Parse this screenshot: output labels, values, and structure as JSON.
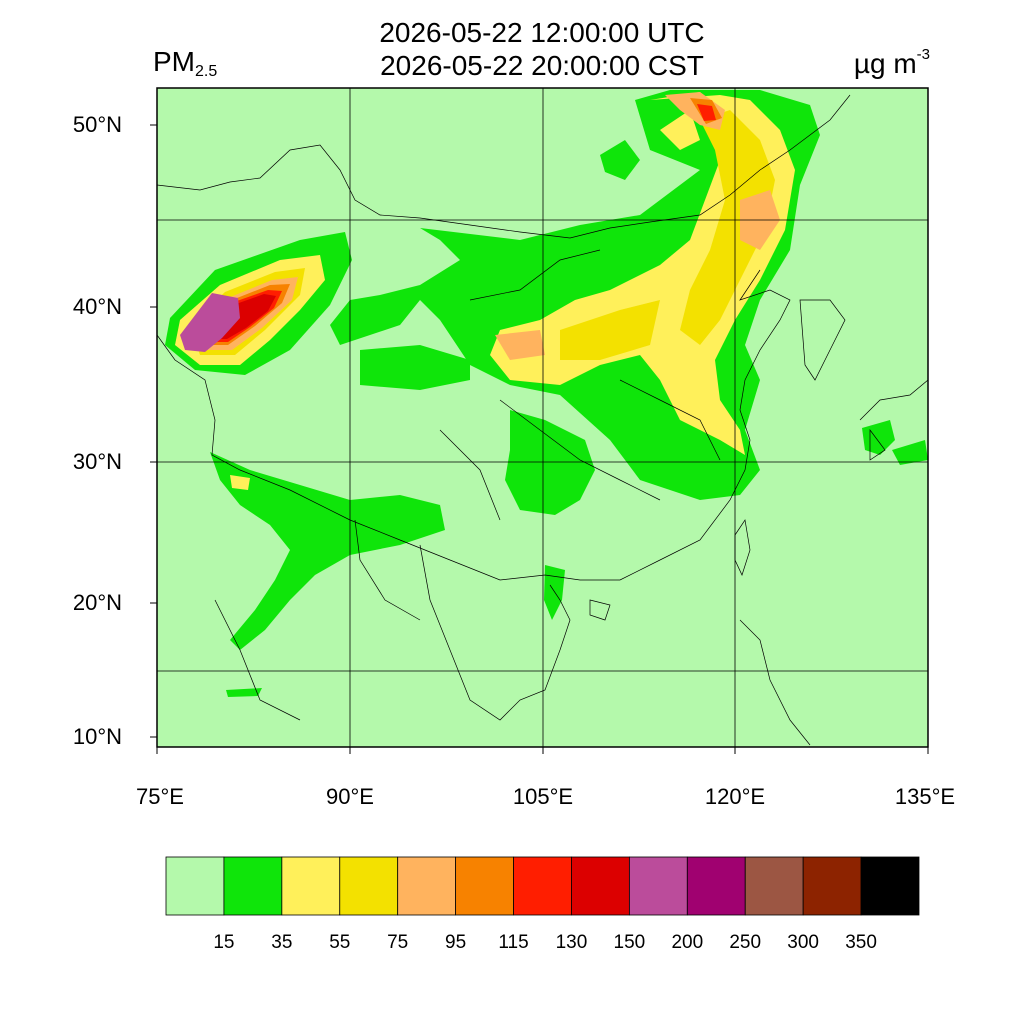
{
  "header": {
    "time_utc": "2026-05-22 12:00:00 UTC",
    "time_cst": "2026-05-22 20:00:00 CST",
    "variable": "PM",
    "variable_sub": "2.5",
    "unit_base": "µg m",
    "unit_exp": "-3"
  },
  "axes": {
    "lat_labels": [
      "50°N",
      "40°N",
      "30°N",
      "20°N",
      "10°N"
    ],
    "lon_labels": [
      "75°E",
      "90°E",
      "105°E",
      "120°E",
      "135°E"
    ],
    "lon_range": [
      75,
      135
    ],
    "lat_range": [
      9,
      53
    ]
  },
  "colorbar": {
    "colors": [
      "#b4f9ab",
      "#0fe50a",
      "#fff05a",
      "#f3e100",
      "#ffb35e",
      "#f78200",
      "#ff1e00",
      "#dc0000",
      "#bb4c9b",
      "#a00170",
      "#9c5643",
      "#8d2300",
      "#000000"
    ],
    "labels": [
      "15",
      "35",
      "55",
      "75",
      "95",
      "115",
      "130",
      "150",
      "200",
      "250",
      "300",
      "350"
    ]
  },
  "map_colors": {
    "background": "#b4f9ab",
    "border": "#000000"
  }
}
